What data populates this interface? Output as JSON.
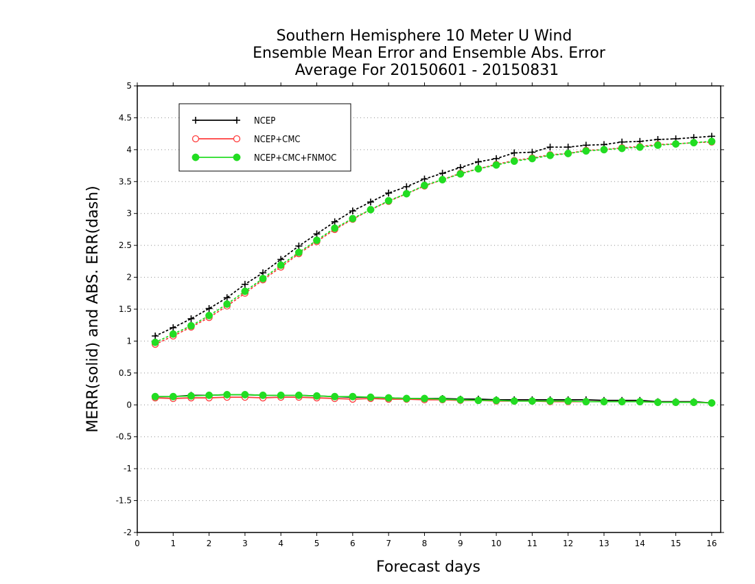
{
  "chart_data": {
    "type": "line",
    "title": [
      "Southern Hemisphere 10 Meter U Wind",
      "Ensemble Mean Error and Ensemble Abs. Error",
      "Average For 20150601 - 20150831"
    ],
    "xlabel": "Forecast days",
    "ylabel": "MERR(solid) and ABS. ERR(dash)",
    "xlim": [
      0,
      16.25
    ],
    "ylim": [
      -2,
      5
    ],
    "xticks": [
      0,
      1,
      2,
      3,
      4,
      5,
      6,
      7,
      8,
      9,
      10,
      11,
      12,
      13,
      14,
      15,
      16
    ],
    "yticks": [
      -2,
      -1.5,
      -1,
      -0.5,
      0,
      0.5,
      1,
      1.5,
      2,
      2.5,
      3,
      3.5,
      4,
      4.5,
      5
    ],
    "grid": "horizontal dotted",
    "legend_position": "top-left",
    "x": [
      0.5,
      1,
      1.5,
      2,
      2.5,
      3,
      3.5,
      4,
      4.5,
      5,
      5.5,
      6,
      6.5,
      7,
      7.5,
      8,
      8.5,
      9,
      9.5,
      10,
      10.5,
      11,
      11.5,
      12,
      12.5,
      13,
      13.5,
      14,
      14.5,
      15,
      15.5,
      16
    ],
    "series": [
      {
        "name": "NCEP",
        "color": "#000000",
        "marker": "plus",
        "abs_err": [
          1.08,
          1.21,
          1.35,
          1.51,
          1.68,
          1.89,
          2.07,
          2.28,
          2.49,
          2.68,
          2.87,
          3.04,
          3.18,
          3.32,
          3.42,
          3.54,
          3.63,
          3.72,
          3.81,
          3.86,
          3.95,
          3.96,
          4.04,
          4.04,
          4.07,
          4.08,
          4.12,
          4.13,
          4.16,
          4.17,
          4.19,
          4.21
        ],
        "mean_err": [
          0.13,
          0.13,
          0.15,
          0.15,
          0.16,
          0.16,
          0.15,
          0.15,
          0.15,
          0.14,
          0.13,
          0.12,
          0.12,
          0.11,
          0.1,
          0.1,
          0.1,
          0.09,
          0.09,
          0.08,
          0.08,
          0.08,
          0.08,
          0.08,
          0.08,
          0.07,
          0.07,
          0.07,
          0.05,
          0.05,
          0.05,
          0.03
        ]
      },
      {
        "name": "NCEP+CMC",
        "color": "#ff3b3b",
        "marker": "open-circle",
        "abs_err": [
          0.95,
          1.08,
          1.22,
          1.37,
          1.55,
          1.75,
          1.96,
          2.16,
          2.37,
          2.56,
          2.75,
          2.91,
          3.06,
          3.19,
          3.31,
          3.43,
          3.53,
          3.63,
          3.7,
          3.77,
          3.83,
          3.87,
          3.92,
          3.94,
          3.99,
          4.0,
          4.03,
          4.05,
          4.08,
          4.09,
          4.11,
          4.12
        ],
        "mean_err": [
          0.11,
          0.1,
          0.11,
          0.11,
          0.12,
          0.12,
          0.11,
          0.12,
          0.12,
          0.11,
          0.1,
          0.09,
          0.1,
          0.09,
          0.09,
          0.08,
          0.08,
          0.07,
          0.07,
          0.06,
          0.06,
          0.06,
          0.05,
          0.05,
          0.05,
          0.05,
          0.05,
          0.05,
          0.04,
          0.04,
          0.04,
          0.03
        ]
      },
      {
        "name": "NCEP+CMC+FNMOC",
        "color": "#22dd22",
        "marker": "filled-circle",
        "abs_err": [
          0.98,
          1.11,
          1.24,
          1.4,
          1.58,
          1.78,
          1.98,
          2.19,
          2.39,
          2.58,
          2.77,
          2.92,
          3.06,
          3.2,
          3.31,
          3.44,
          3.53,
          3.62,
          3.7,
          3.76,
          3.82,
          3.86,
          3.91,
          3.94,
          3.98,
          4.0,
          4.02,
          4.04,
          4.07,
          4.09,
          4.11,
          4.13
        ],
        "mean_err": [
          0.13,
          0.13,
          0.14,
          0.15,
          0.16,
          0.16,
          0.15,
          0.15,
          0.15,
          0.14,
          0.13,
          0.13,
          0.12,
          0.11,
          0.1,
          0.1,
          0.09,
          0.08,
          0.07,
          0.07,
          0.06,
          0.06,
          0.06,
          0.06,
          0.05,
          0.05,
          0.05,
          0.05,
          0.04,
          0.04,
          0.04,
          0.03
        ]
      }
    ]
  }
}
